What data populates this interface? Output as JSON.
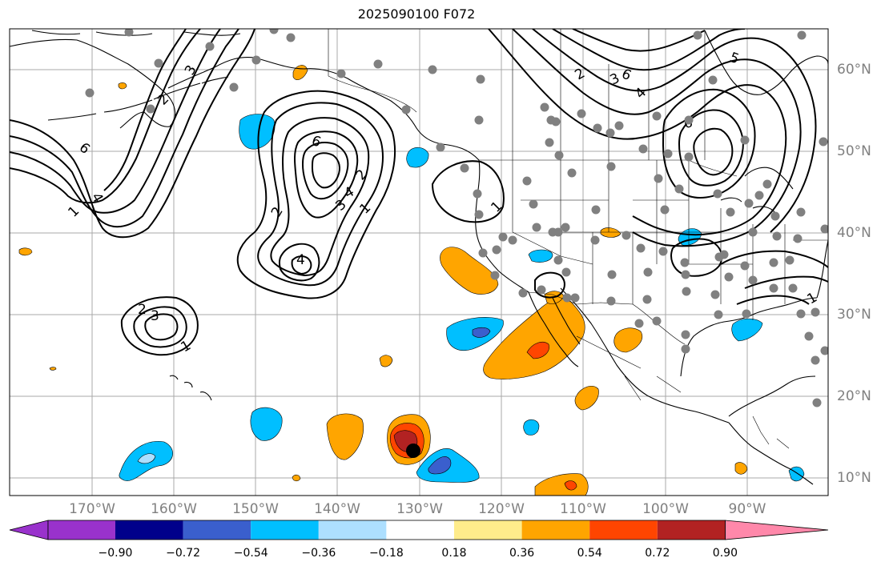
{
  "title": "2025090100 F072",
  "map": {
    "projection": "equirectangular",
    "lon_labels": [
      "170°W",
      "160°W",
      "150°W",
      "140°W",
      "130°W",
      "120°W",
      "110°W",
      "100°W",
      "90°W"
    ],
    "lat_labels": [
      "60°N",
      "50°N",
      "40°N",
      "30°N",
      "20°N",
      "10°N"
    ],
    "contour_labels": [
      "1",
      "2",
      "3",
      "4",
      "5",
      "6"
    ],
    "hurricane_marker": "black-dot",
    "station_marker": "gray-dot"
  },
  "colorbar": {
    "ticks": [
      "−0.90",
      "−0.72",
      "−0.54",
      "−0.36",
      "−0.18",
      "0.18",
      "0.36",
      "0.54",
      "0.72",
      "0.90"
    ],
    "colors": [
      "#9932CC",
      "#00008B",
      "#3A5FCD",
      "#00BFFF",
      "#ADDFFF",
      "#FFFFFF",
      "#FFEC8B",
      "#FFA500",
      "#FF4500",
      "#B22222",
      "#FF88AA"
    ]
  }
}
